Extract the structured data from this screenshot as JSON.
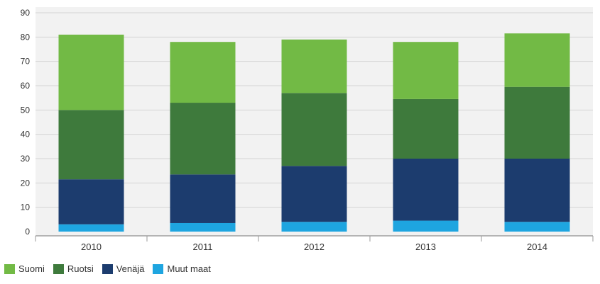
{
  "chart_data": {
    "type": "bar",
    "stacked": true,
    "categories": [
      "2010",
      "2011",
      "2012",
      "2013",
      "2014"
    ],
    "series": [
      {
        "name": "Muut maat",
        "color": "#1ea5e0",
        "values": [
          3,
          3.5,
          4,
          4.5,
          4
        ]
      },
      {
        "name": "Venäjä",
        "color": "#1c3c6e",
        "values": [
          18.5,
          20,
          23,
          25.5,
          26
        ]
      },
      {
        "name": "Ruotsi",
        "color": "#3e7a3c",
        "values": [
          28.5,
          29.5,
          30,
          24.5,
          29.5
        ]
      },
      {
        "name": "Suomi",
        "color": "#72ba45",
        "values": [
          31,
          25,
          22,
          23.5,
          22
        ]
      }
    ],
    "legend_order": [
      "Suomi",
      "Ruotsi",
      "Venäjä",
      "Muut maat"
    ],
    "y_ticks": [
      "0",
      "10",
      "20",
      "30",
      "40",
      "50",
      "60",
      "70",
      "80",
      "90"
    ],
    "ylim": [
      0,
      90
    ],
    "title": "",
    "xlabel": "",
    "ylabel": "",
    "grid": true,
    "legend_position": "bottom-left"
  },
  "legend": {
    "items": [
      {
        "label": "Suomi",
        "color": "#72ba45"
      },
      {
        "label": "Ruotsi",
        "color": "#3e7a3c"
      },
      {
        "label": "Venäjä",
        "color": "#1c3c6e"
      },
      {
        "label": "Muut maat",
        "color": "#1ea5e0"
      }
    ]
  }
}
